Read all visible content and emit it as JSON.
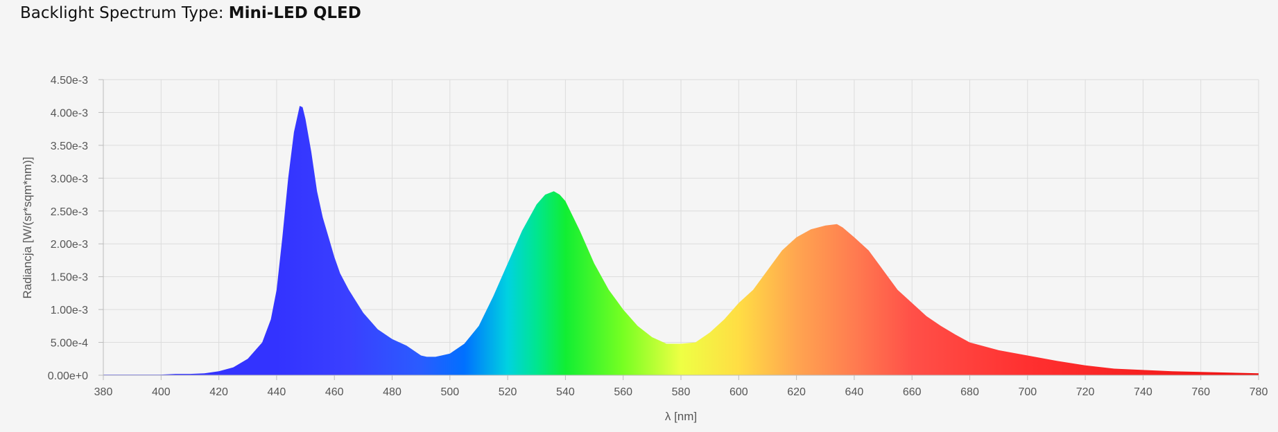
{
  "header": {
    "label": "Backlight Spectrum Type:",
    "value": "Mini-LED QLED"
  },
  "chart_data": {
    "type": "area",
    "xlabel": "λ [nm]",
    "ylabel": "Radiancja [W/(sr*sqm*nm)]",
    "xlim": [
      380,
      780
    ],
    "ylim": [
      0,
      0.0045
    ],
    "x_ticks": [
      380,
      400,
      420,
      440,
      460,
      480,
      500,
      520,
      540,
      560,
      580,
      600,
      620,
      640,
      660,
      680,
      700,
      720,
      740,
      760,
      780
    ],
    "x_tick_labels": [
      "380",
      "400",
      "420",
      "440",
      "460",
      "480",
      "500",
      "520",
      "540",
      "560",
      "580",
      "600",
      "620",
      "640",
      "660",
      "680",
      "700",
      "720",
      "740",
      "760",
      "780"
    ],
    "y_ticks": [
      0,
      0.0005,
      0.001,
      0.0015,
      0.002,
      0.0025,
      0.003,
      0.0035,
      0.004,
      0.0045
    ],
    "y_tick_labels": [
      "0.00e+0",
      "5.00e-4",
      "1.00e-3",
      "1.50e-3",
      "2.00e-3",
      "2.50e-3",
      "3.00e-3",
      "3.50e-3",
      "4.00e-3",
      "4.50e-3"
    ],
    "grid": true,
    "legend": "none",
    "fill": "wavelength-gradient",
    "series": [
      {
        "x": [
          380,
          390,
          400,
          405,
          410,
          415,
          420,
          425,
          430,
          435,
          438,
          440,
          442,
          444,
          446,
          448,
          449,
          450,
          452,
          454,
          456,
          458,
          460,
          462,
          465,
          470,
          475,
          480,
          485,
          490,
          492,
          495,
          500,
          505,
          510,
          515,
          520,
          525,
          530,
          533,
          536,
          538,
          540,
          545,
          550,
          555,
          560,
          565,
          570,
          575,
          580,
          585,
          590,
          595,
          600,
          605,
          610,
          615,
          620,
          625,
          630,
          634,
          636,
          640,
          645,
          650,
          655,
          660,
          665,
          670,
          675,
          680,
          690,
          700,
          710,
          720,
          730,
          740,
          750,
          760,
          770,
          780
        ],
        "y": [
          1e-05,
          1e-05,
          1e-05,
          2e-05,
          2e-05,
          3e-05,
          6e-05,
          0.00012,
          0.00025,
          0.0005,
          0.00085,
          0.0013,
          0.0021,
          0.003,
          0.0037,
          0.0041,
          0.00408,
          0.0039,
          0.0034,
          0.0028,
          0.0024,
          0.0021,
          0.0018,
          0.00155,
          0.0013,
          0.00095,
          0.0007,
          0.00055,
          0.00045,
          0.0003,
          0.00028,
          0.00028,
          0.00033,
          0.00048,
          0.00075,
          0.0012,
          0.0017,
          0.0022,
          0.0026,
          0.00275,
          0.0028,
          0.00275,
          0.00265,
          0.0022,
          0.0017,
          0.0013,
          0.001,
          0.00075,
          0.00058,
          0.00048,
          0.00048,
          0.0005,
          0.00065,
          0.00085,
          0.0011,
          0.0013,
          0.0016,
          0.0019,
          0.0021,
          0.00222,
          0.00228,
          0.0023,
          0.00225,
          0.0021,
          0.0019,
          0.0016,
          0.0013,
          0.0011,
          0.0009,
          0.00075,
          0.00062,
          0.0005,
          0.00038,
          0.0003,
          0.00022,
          0.00015,
          0.0001,
          8e-05,
          6e-05,
          5e-05,
          4e-05,
          3e-05
        ]
      }
    ],
    "gradient_stops": [
      {
        "nm": 380,
        "color": "#3333ff"
      },
      {
        "nm": 440,
        "color": "#3333ff"
      },
      {
        "nm": 465,
        "color": "#3a40ff"
      },
      {
        "nm": 490,
        "color": "#2a5cff"
      },
      {
        "nm": 505,
        "color": "#0070ff"
      },
      {
        "nm": 520,
        "color": "#00d2e0"
      },
      {
        "nm": 530,
        "color": "#00e690"
      },
      {
        "nm": 540,
        "color": "#11ee33"
      },
      {
        "nm": 560,
        "color": "#77ff22"
      },
      {
        "nm": 580,
        "color": "#eeff44"
      },
      {
        "nm": 600,
        "color": "#ffdd44"
      },
      {
        "nm": 620,
        "color": "#ffa550"
      },
      {
        "nm": 640,
        "color": "#ff7c50"
      },
      {
        "nm": 660,
        "color": "#ff5048"
      },
      {
        "nm": 700,
        "color": "#ff3030"
      },
      {
        "nm": 780,
        "color": "#ee1111"
      }
    ]
  }
}
